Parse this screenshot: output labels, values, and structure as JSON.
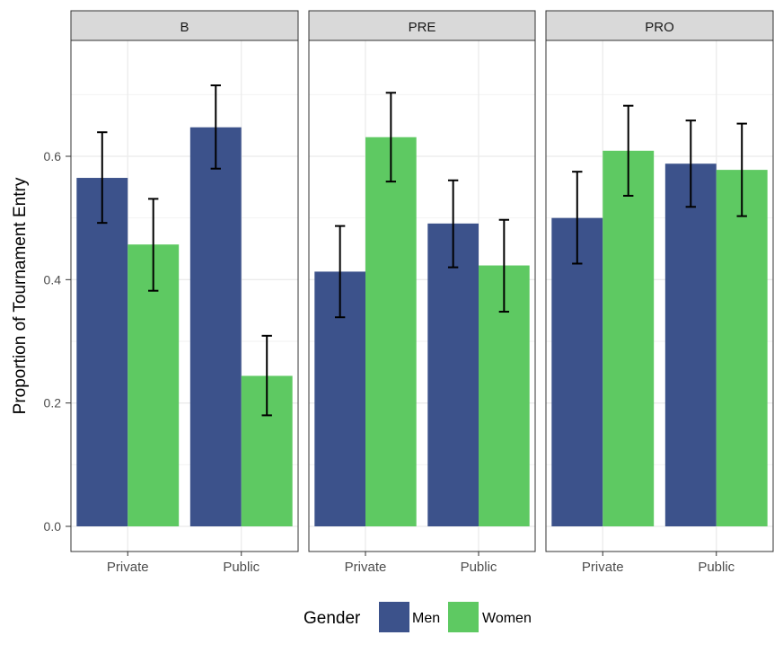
{
  "chart_data": {
    "type": "bar",
    "ylabel": "Proportion of Tournament Entry",
    "ylim": [
      0,
      0.75
    ],
    "yticks": [
      0.0,
      0.2,
      0.4,
      0.6
    ],
    "ytick_labels": [
      "0.0",
      "0.2",
      "0.4",
      "0.6"
    ],
    "categories": [
      "Private",
      "Public"
    ],
    "grid": true,
    "legend": {
      "title": "Gender",
      "placement": "bottom",
      "entries": [
        "Men",
        "Women"
      ]
    },
    "colors": {
      "Men": "#3c528b",
      "Women": "#5ec962"
    },
    "panels": [
      {
        "title": "B",
        "series": [
          {
            "name": "Men",
            "values": [
              0.565,
              0.647
            ],
            "err_low": [
              0.492,
              0.58
            ],
            "err_high": [
              0.639,
              0.715
            ]
          },
          {
            "name": "Women",
            "values": [
              0.457,
              0.244
            ],
            "err_low": [
              0.382,
              0.18
            ],
            "err_high": [
              0.531,
              0.309
            ]
          }
        ]
      },
      {
        "title": "PRE",
        "series": [
          {
            "name": "Men",
            "values": [
              0.413,
              0.491
            ],
            "err_low": [
              0.339,
              0.42
            ],
            "err_high": [
              0.487,
              0.561
            ]
          },
          {
            "name": "Women",
            "values": [
              0.631,
              0.423
            ],
            "err_low": [
              0.559,
              0.348
            ],
            "err_high": [
              0.703,
              0.497
            ]
          }
        ]
      },
      {
        "title": "PRO",
        "series": [
          {
            "name": "Men",
            "values": [
              0.5,
              0.588
            ],
            "err_low": [
              0.426,
              0.518
            ],
            "err_high": [
              0.575,
              0.658
            ]
          },
          {
            "name": "Women",
            "values": [
              0.609,
              0.578
            ],
            "err_low": [
              0.536,
              0.503
            ],
            "err_high": [
              0.682,
              0.653
            ]
          }
        ]
      }
    ]
  }
}
